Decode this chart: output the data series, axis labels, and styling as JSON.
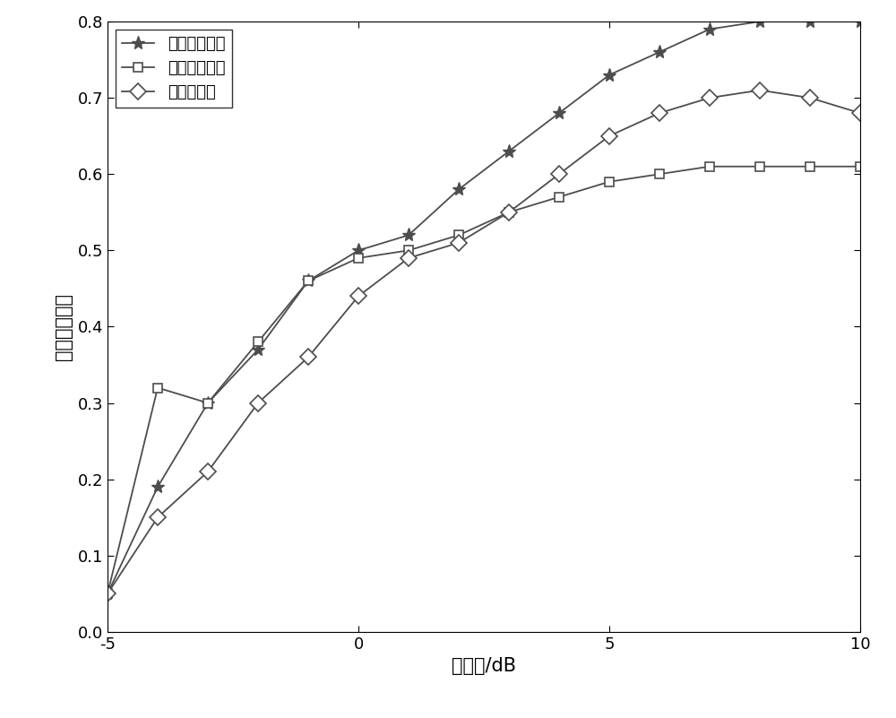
{
  "x": [
    -5,
    -4,
    -3,
    -2,
    -1,
    0,
    1,
    2,
    3,
    4,
    5,
    6,
    7,
    8,
    9,
    10
  ],
  "energy_threshold": [
    0.05,
    0.19,
    0.3,
    0.37,
    0.46,
    0.5,
    0.52,
    0.58,
    0.63,
    0.68,
    0.73,
    0.76,
    0.79,
    0.8,
    0.8,
    0.8
  ],
  "improved_threshold": [
    0.05,
    0.32,
    0.3,
    0.38,
    0.46,
    0.49,
    0.5,
    0.52,
    0.55,
    0.57,
    0.59,
    0.6,
    0.61,
    0.61,
    0.61,
    0.61
  ],
  "histogram": [
    0.05,
    0.15,
    0.21,
    0.3,
    0.36,
    0.44,
    0.49,
    0.51,
    0.55,
    0.6,
    0.65,
    0.68,
    0.7,
    0.71,
    0.7,
    0.68
  ],
  "legend1": "能量门限去噪",
  "legend2": "改进门限去噪",
  "legend3": "直方图去噪",
  "xlabel": "信噪比/dB",
  "ylabel": "信号点检测率",
  "xlim": [
    -5,
    10
  ],
  "ylim": [
    0,
    0.8
  ],
  "yticks": [
    0,
    0.1,
    0.2,
    0.3,
    0.4,
    0.5,
    0.6,
    0.7,
    0.8
  ],
  "xticks": [
    -5,
    0,
    5,
    10
  ],
  "line_color": "#4d4d4d",
  "background_color": "#ffffff",
  "tick_fontsize": 13,
  "label_fontsize": 15,
  "legend_fontsize": 13
}
